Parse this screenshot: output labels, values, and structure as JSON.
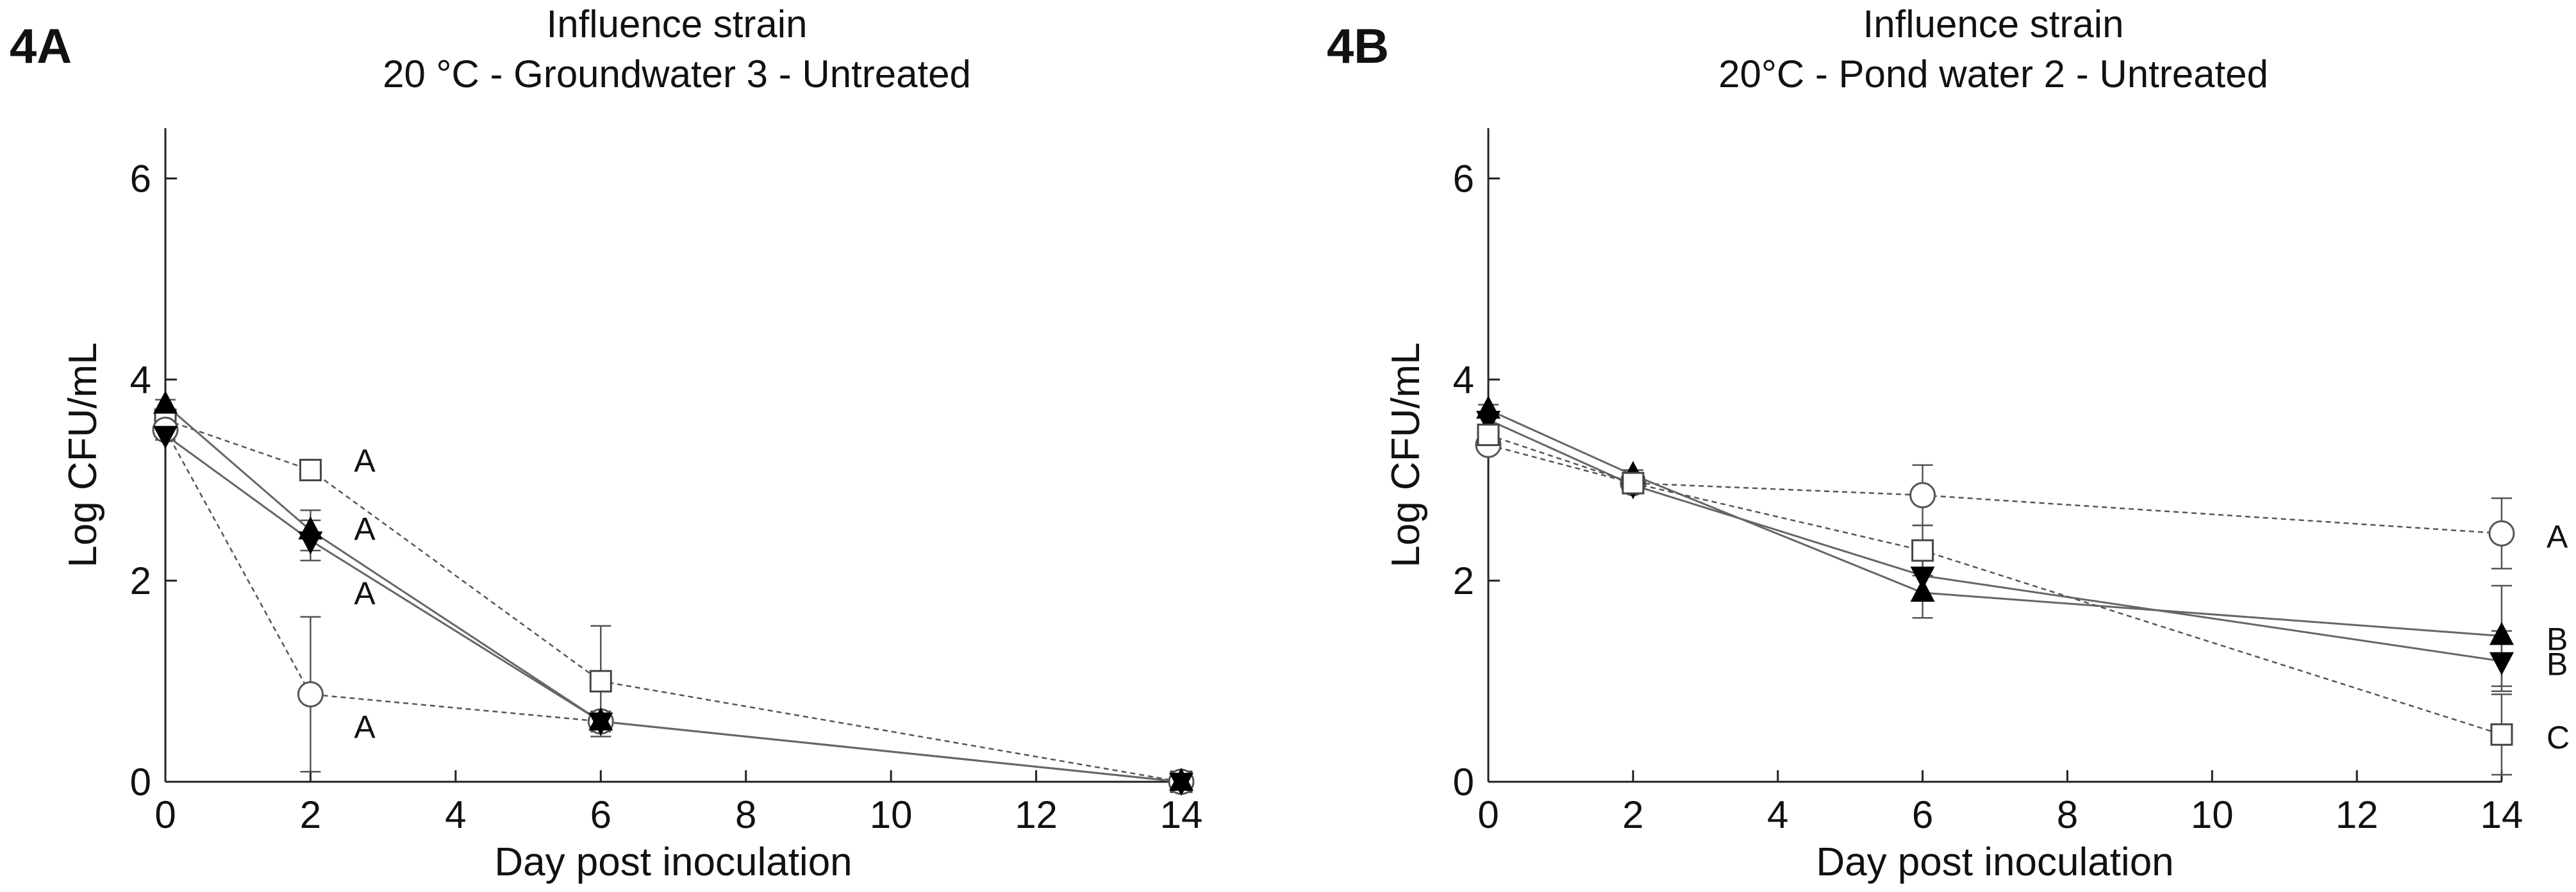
{
  "chart_data": [
    {
      "type": "line",
      "panel_label": "4A",
      "title": "Influence strain",
      "subtitle": "20 °C - Groundwater 3 - Untreated",
      "xlabel": "Day post inoculation",
      "ylabel": "Log CFU/mL",
      "xlim": [
        0,
        14
      ],
      "ylim": [
        0,
        6.5
      ],
      "xticks": [
        0,
        2,
        4,
        6,
        8,
        10,
        12,
        14
      ],
      "yticks": [
        0,
        2,
        4,
        6
      ],
      "grid": false,
      "series": [
        {
          "marker": "open-square",
          "line": "dashed",
          "x": [
            0,
            2,
            6,
            14
          ],
          "y": [
            3.6,
            3.1,
            1.0,
            0.0
          ],
          "err": [
            0.05,
            0.05,
            0.55,
            0.0
          ],
          "end_letter": ""
        },
        {
          "marker": "open-circle",
          "line": "dashed",
          "x": [
            0,
            2,
            6,
            14
          ],
          "y": [
            3.5,
            0.87,
            0.6,
            0.0
          ],
          "err": [
            0.05,
            0.77,
            0.05,
            0.0
          ],
          "end_letter": ""
        },
        {
          "marker": "filled-triangle-up",
          "line": "solid",
          "x": [
            0,
            2,
            6,
            14
          ],
          "y": [
            3.75,
            2.5,
            0.6,
            0.0
          ],
          "err": [
            0.05,
            0.2,
            0.1,
            0.0
          ],
          "end_letter": ""
        },
        {
          "marker": "filled-triangle-down",
          "line": "solid",
          "x": [
            0,
            2,
            6,
            14
          ],
          "y": [
            3.45,
            2.4,
            0.6,
            0.0
          ],
          "err": [
            0.05,
            0.2,
            0.1,
            0.0
          ],
          "end_letter": ""
        }
      ],
      "annotations": [
        {
          "text": "A",
          "x": 2.6,
          "y": 3.2
        },
        {
          "text": "A",
          "x": 2.6,
          "y": 2.52
        },
        {
          "text": "A",
          "x": 2.6,
          "y": 1.88
        },
        {
          "text": "A",
          "x": 2.6,
          "y": 0.55
        }
      ]
    },
    {
      "type": "line",
      "panel_label": "4B",
      "title": "Influence strain",
      "subtitle": "20°C - Pond water 2 - Untreated",
      "xlabel": "Day post inoculation",
      "ylabel": "Log CFU/mL",
      "xlim": [
        0,
        14
      ],
      "ylim": [
        0,
        6.5
      ],
      "xticks": [
        0,
        2,
        4,
        6,
        8,
        10,
        12,
        14
      ],
      "yticks": [
        0,
        2,
        4,
        6
      ],
      "grid": false,
      "series": [
        {
          "marker": "open-circle",
          "line": "dashed",
          "x": [
            0,
            2,
            6,
            14
          ],
          "y": [
            3.35,
            2.97,
            2.85,
            2.47
          ],
          "err": [
            0.05,
            0.05,
            0.3,
            0.35
          ],
          "end_letter": "A"
        },
        {
          "marker": "filled-triangle-up",
          "line": "solid",
          "x": [
            0,
            2,
            6,
            14
          ],
          "y": [
            3.7,
            3.05,
            1.88,
            1.45
          ],
          "err": [
            0.05,
            0.05,
            0.25,
            0.5
          ],
          "end_letter": "B"
        },
        {
          "marker": "filled-triangle-down",
          "line": "solid",
          "x": [
            0,
            2,
            6,
            14
          ],
          "y": [
            3.6,
            2.95,
            2.05,
            1.2
          ],
          "err": [
            0.05,
            0.05,
            0.25,
            0.3
          ],
          "end_letter": "B"
        },
        {
          "marker": "open-square",
          "line": "dashed",
          "x": [
            0,
            2,
            6,
            14
          ],
          "y": [
            3.45,
            2.97,
            2.3,
            0.47
          ],
          "err": [
            0.05,
            0.05,
            0.25,
            0.4
          ],
          "end_letter": "C"
        }
      ],
      "annotations": []
    }
  ]
}
